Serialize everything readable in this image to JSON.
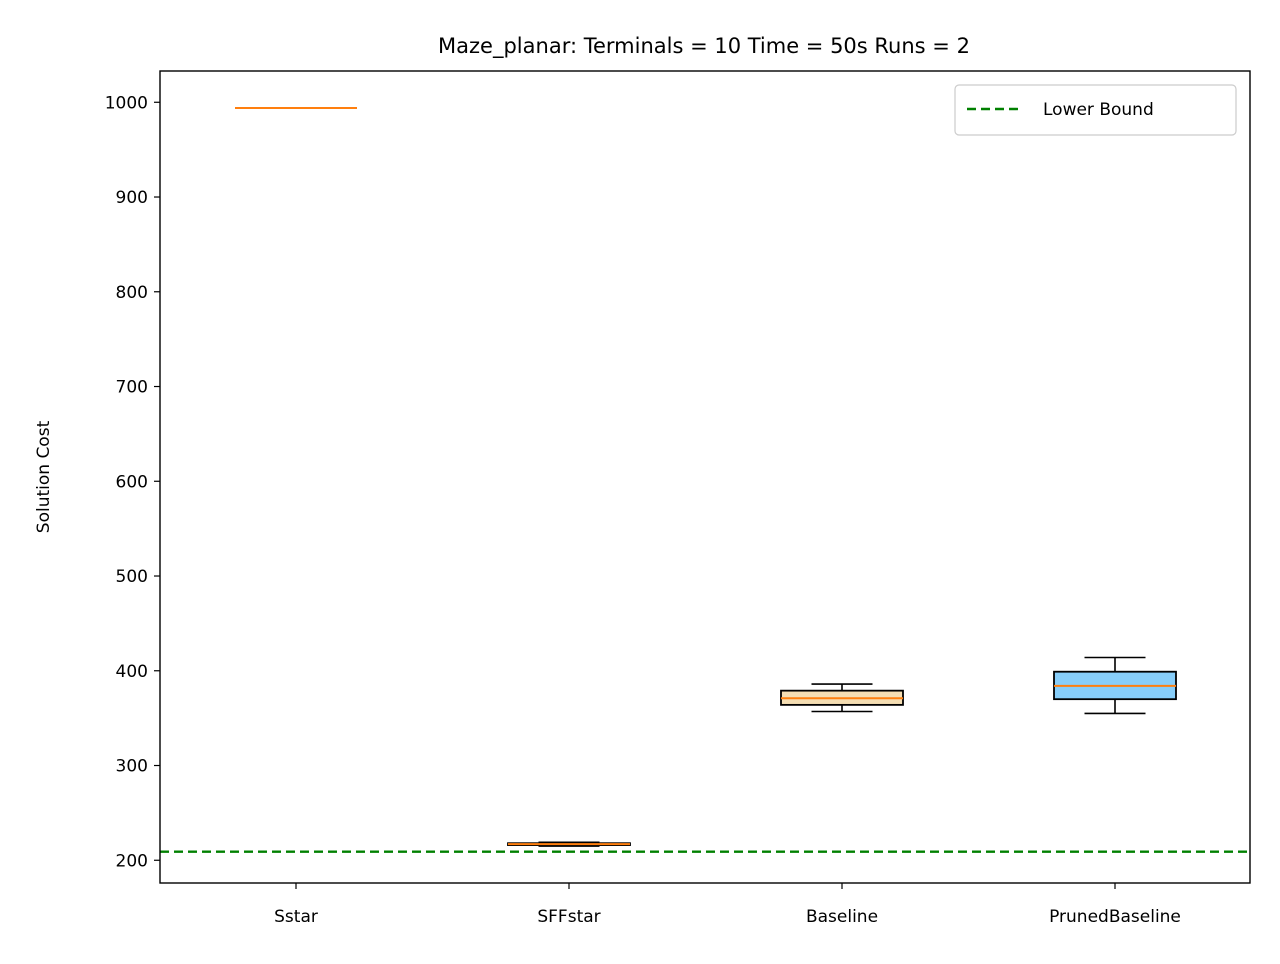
{
  "chart_data": {
    "type": "box",
    "title": "Maze_planar:  Terminals = 10  Time = 50s  Runs = 2",
    "xlabel": "",
    "ylabel": "Solution Cost",
    "ylim": [
      176,
      1033
    ],
    "yticks": [
      200,
      300,
      400,
      500,
      600,
      700,
      800,
      900,
      1000
    ],
    "categories": [
      "Sstar",
      "SFFstar",
      "Baseline",
      "PrunedBaseline"
    ],
    "boxes": [
      {
        "category": "Sstar",
        "whisker_low": 994,
        "q1": 994,
        "median": 994,
        "q3": 994,
        "whisker_high": 994,
        "fill": "#ffffff"
      },
      {
        "category": "SFFstar",
        "whisker_low": 215,
        "q1": 216,
        "median": 217,
        "q3": 218,
        "whisker_high": 219,
        "fill": "#cd853f"
      },
      {
        "category": "Baseline",
        "whisker_low": 357,
        "q1": 364,
        "median": 371,
        "q3": 379,
        "whisker_high": 386,
        "fill": "#f5deb3"
      },
      {
        "category": "PrunedBaseline",
        "whisker_low": 355,
        "q1": 370,
        "median": 384,
        "q3": 399,
        "whisker_high": 414,
        "fill": "#87cefa"
      }
    ],
    "reference_lines": [
      {
        "name": "Lower Bound",
        "y": 209,
        "style": "dashed",
        "color": "#008000"
      }
    ],
    "legend": {
      "position": "top-right",
      "entries": [
        "Lower Bound"
      ]
    },
    "median_color": "#ff7f0e",
    "grid": false
  }
}
